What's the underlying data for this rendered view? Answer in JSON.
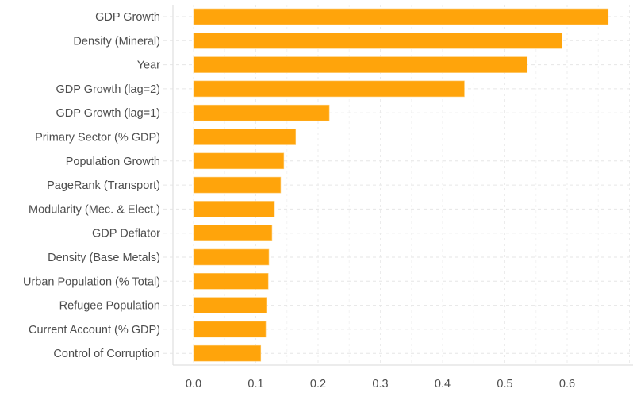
{
  "chart_data": {
    "type": "bar",
    "orientation": "horizontal",
    "title": "",
    "xlabel": "",
    "ylabel": "",
    "xlim": [
      0,
      0.65
    ],
    "x_ticks": [
      "0.0",
      "0.1",
      "0.2",
      "0.3",
      "0.4",
      "0.5",
      "0.6"
    ],
    "x_tick_values": [
      0.0,
      0.1,
      0.2,
      0.3,
      0.4,
      0.5,
      0.6
    ],
    "grid": true,
    "bar_color": "#FFA40B",
    "categories": [
      "GDP Growth",
      "Density (Mineral)",
      "Year",
      "GDP Growth (lag=2)",
      "GDP Growth (lag=1)",
      "Primary Sector (% GDP)",
      "Population Growth",
      "PageRank (Transport)",
      "Modularity (Mec. & Elect.)",
      "GDP Deflator",
      "Density (Base Metals)",
      "Urban Population (% Total)",
      "Refugee Population",
      "Current Account (% GDP)",
      "Control of Corruption"
    ],
    "values": [
      0.666,
      0.592,
      0.536,
      0.435,
      0.218,
      0.164,
      0.145,
      0.14,
      0.13,
      0.126,
      0.121,
      0.12,
      0.117,
      0.116,
      0.108
    ]
  }
}
